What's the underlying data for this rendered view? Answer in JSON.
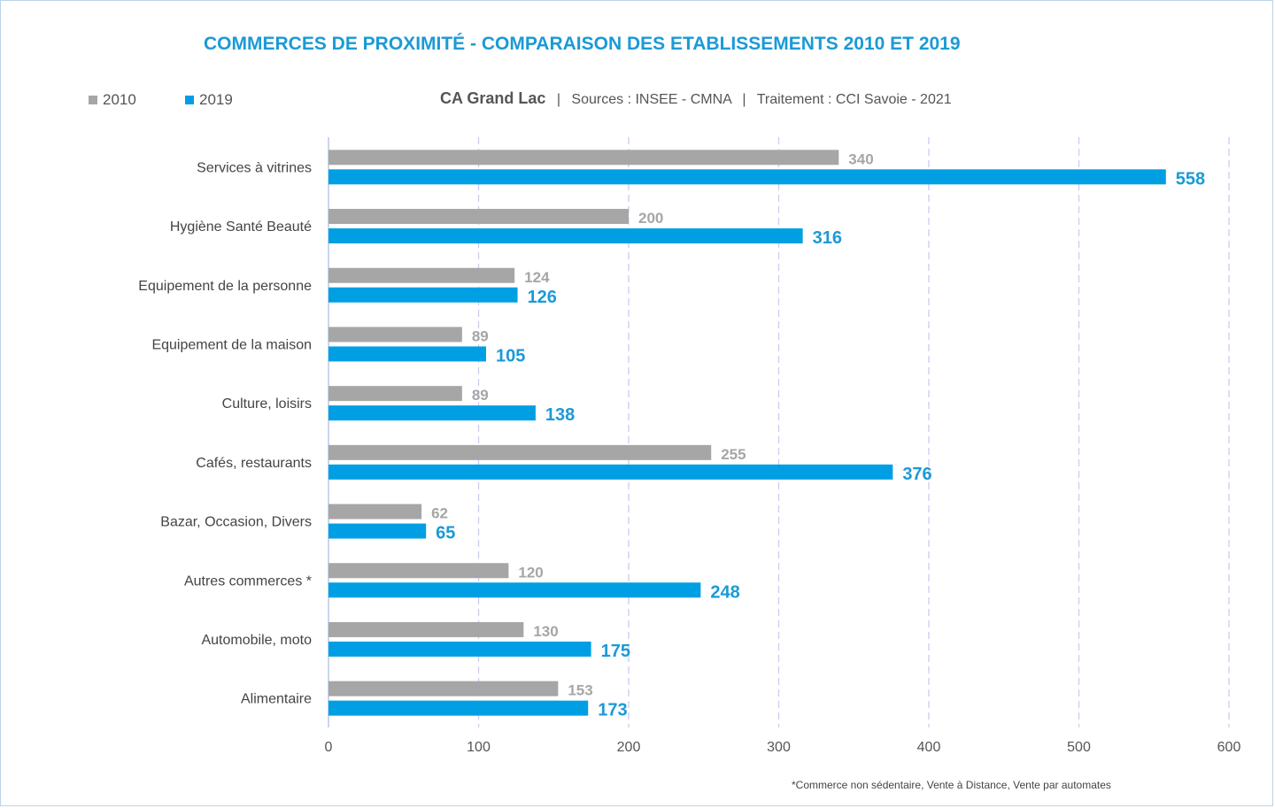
{
  "title": "COMMERCES DE PROXIMITÉ - COMPARAISON DES ETABLISSEMENTS 2010 ET 2019",
  "subtitle": {
    "region": "CA Grand Lac",
    "sources": "Sources : INSEE - CMNA",
    "treatment": "Traitement : CCI Savoie - 2021",
    "separator": "|"
  },
  "footnote": "*Commerce non sédentaire, Vente à Distance, Vente par automates",
  "colors": {
    "series_2010": "#a6a6a6",
    "series_2019": "#009fe3",
    "title": "#1b9ad6",
    "grid": "#c9cdf0"
  },
  "chart_data": {
    "type": "bar",
    "orientation": "horizontal",
    "title": "COMMERCES DE PROXIMITÉ - COMPARAISON DES ETABLISSEMENTS 2010 ET 2019",
    "categories": [
      "Services à vitrines",
      "Hygiène Santé Beauté",
      "Equipement de la personne",
      "Equipement de la maison",
      "Culture, loisirs",
      "Cafés, restaurants",
      "Bazar, Occasion, Divers",
      "Autres commerces *",
      "Automobile, moto",
      "Alimentaire"
    ],
    "series": [
      {
        "name": "2010",
        "values": [
          340,
          200,
          124,
          89,
          89,
          255,
          62,
          120,
          130,
          153
        ]
      },
      {
        "name": "2019",
        "values": [
          558,
          316,
          126,
          105,
          138,
          376,
          65,
          248,
          175,
          173
        ]
      }
    ],
    "xlim": [
      0,
      600
    ],
    "ticks": [
      0,
      100,
      200,
      300,
      400,
      500,
      600
    ],
    "grid": true,
    "legend": "top-left"
  }
}
